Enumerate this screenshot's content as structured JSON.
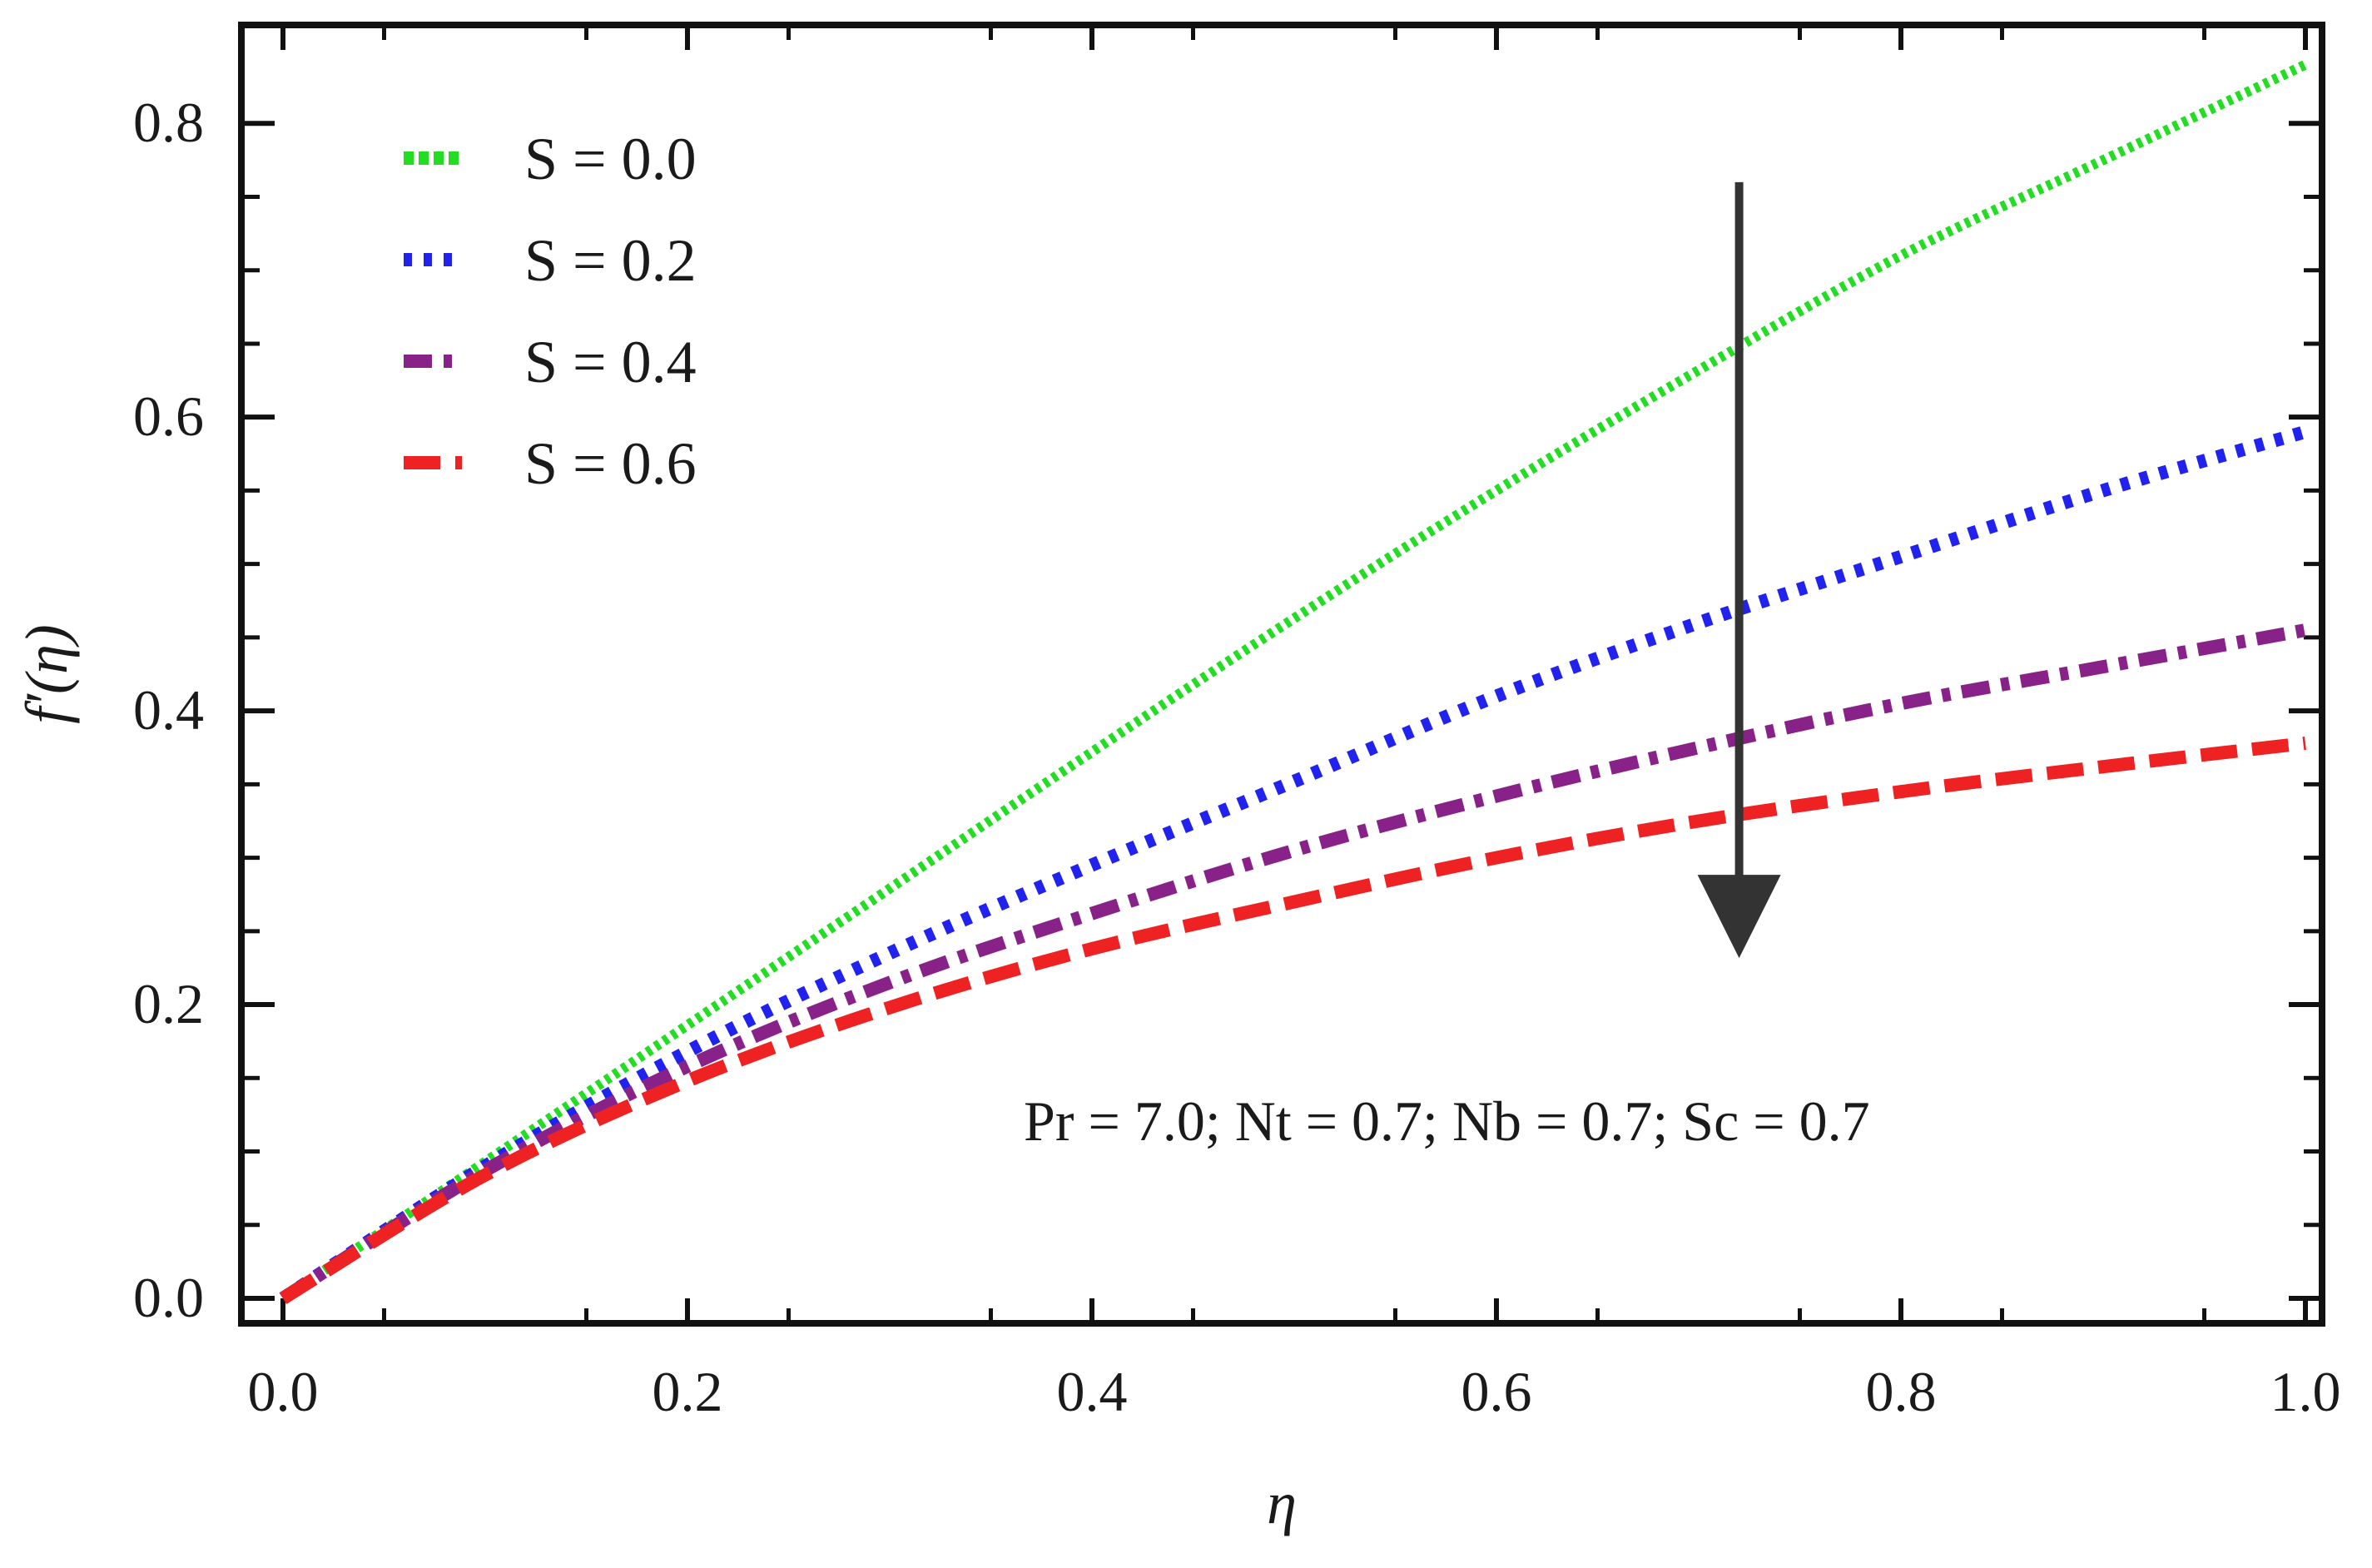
{
  "chart_data": {
    "type": "line",
    "xlabel": "η",
    "ylabel": "f′(η)",
    "xlim": [
      0.0,
      1.0
    ],
    "ylim": [
      0.0,
      0.85
    ],
    "x_ticks": [
      "0.0",
      "0.2",
      "0.4",
      "0.6",
      "0.8",
      "1.0"
    ],
    "y_ticks": [
      "0.0",
      "0.2",
      "0.4",
      "0.6",
      "0.8"
    ],
    "x": [
      0.0,
      0.1,
      0.2,
      0.3,
      0.4,
      0.5,
      0.6,
      0.7,
      0.8,
      0.9,
      1.0
    ],
    "series": [
      {
        "name": "S = 0.0",
        "color": "#22dd22",
        "style": "dotted",
        "values": [
          0.0,
          0.093,
          0.186,
          0.279,
          0.372,
          0.463,
          0.55,
          0.632,
          0.71,
          0.775,
          0.84
        ]
      },
      {
        "name": "S = 0.2",
        "color": "#2222ee",
        "style": "dotted",
        "values": [
          0.0,
          0.09,
          0.168,
          0.235,
          0.295,
          0.352,
          0.41,
          0.46,
          0.505,
          0.55,
          0.59
        ]
      },
      {
        "name": "S = 0.4",
        "color": "#882288",
        "style": "dashdot",
        "values": [
          0.0,
          0.087,
          0.158,
          0.215,
          0.262,
          0.305,
          0.342,
          0.375,
          0.405,
          0.43,
          0.455
        ]
      },
      {
        "name": "S = 0.6",
        "color": "#ee2222",
        "style": "dashed",
        "values": [
          0.0,
          0.084,
          0.148,
          0.198,
          0.238,
          0.27,
          0.3,
          0.325,
          0.345,
          0.362,
          0.378
        ]
      }
    ],
    "annotation": "Pr = 7.0;  Nt = 0.7; Nb = 0.7; Sc = 0.7",
    "arrow": {
      "x": 0.72,
      "from_y": 0.76,
      "to_y": 0.26,
      "color": "#333333"
    },
    "legend_position": "top-left",
    "grid": false
  }
}
